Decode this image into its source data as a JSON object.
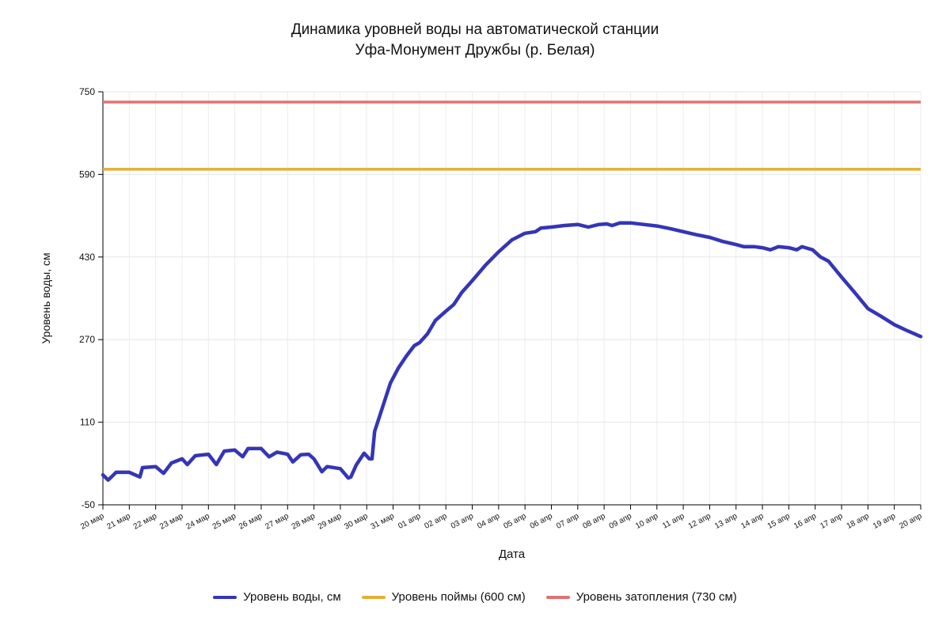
{
  "chart_data": {
    "type": "line",
    "title": [
      "Динамика уровней воды на автоматической станции",
      "Уфа-Монумент Дружбы (р. Белая)"
    ],
    "xlabel": "Дата",
    "ylabel": "Уровень воды, см",
    "ylim": [
      -50,
      750
    ],
    "yticks": [
      -50,
      110,
      270,
      430,
      590,
      750
    ],
    "xticks": [
      "20 мар",
      "21 мар",
      "22 мар",
      "23 мар",
      "24 мар",
      "25 мар",
      "26 мар",
      "27 мар",
      "28 мар",
      "29 мар",
      "30 мар",
      "31 мар",
      "01 апр",
      "02 апр",
      "03 апр",
      "04 апр",
      "05 апр",
      "06 апр",
      "07 апр",
      "08 апр",
      "09 апр",
      "10 апр",
      "11 апр",
      "12 апр",
      "13 апр",
      "14 апр",
      "15 апр",
      "16 апр",
      "17 апр",
      "18 апр",
      "19 апр",
      "20 апр"
    ],
    "grid": true,
    "legend_placement": "bottom",
    "series": [
      {
        "name": "Уровень воды, см",
        "color": "#3535b8",
        "x_days": [
          0,
          0.2,
          0.5,
          1.0,
          1.4,
          1.5,
          2.0,
          2.3,
          2.6,
          3.0,
          3.2,
          3.5,
          4.0,
          4.3,
          4.6,
          5.0,
          5.3,
          5.5,
          6.0,
          6.3,
          6.6,
          7.0,
          7.2,
          7.5,
          7.8,
          8.0,
          8.3,
          8.5,
          9.0,
          9.3,
          9.4,
          9.6,
          9.9,
          10.1,
          10.2,
          10.3,
          10.6,
          10.9,
          11.2,
          11.5,
          11.8,
          12.0,
          12.3,
          12.6,
          13.0,
          13.3,
          13.6,
          14.0,
          14.5,
          15.0,
          15.5,
          16.0,
          16.4,
          16.6,
          17.0,
          17.5,
          18.0,
          18.4,
          18.8,
          19.1,
          19.3,
          19.6,
          20.0,
          20.5,
          21.0,
          21.5,
          22.0,
          22.5,
          23.0,
          23.5,
          24.0,
          24.3,
          24.7,
          25.0,
          25.3,
          25.6,
          26.0,
          26.3,
          26.5,
          26.9,
          27.2,
          27.5,
          28.0,
          28.5,
          29.0,
          29.5,
          30.0,
          30.5,
          31.0
        ],
        "values": [
          8,
          -2,
          13,
          13,
          4,
          22,
          24,
          11,
          31,
          39,
          28,
          45,
          48,
          28,
          54,
          56,
          43,
          59,
          59,
          43,
          52,
          48,
          33,
          47,
          48,
          39,
          14,
          24,
          20,
          2,
          4,
          27,
          50,
          39,
          39,
          92,
          139,
          186,
          215,
          238,
          258,
          264,
          281,
          307,
          325,
          338,
          361,
          384,
          414,
          440,
          463,
          476,
          479,
          486,
          488,
          491,
          493,
          488,
          493,
          494,
          491,
          496,
          496,
          493,
          490,
          485,
          479,
          473,
          468,
          460,
          454,
          450,
          450,
          448,
          444,
          450,
          448,
          444,
          450,
          444,
          430,
          422,
          391,
          361,
          330,
          315,
          299,
          287,
          276
        ]
      },
      {
        "name": "Уровень поймы (600 см)",
        "color": "#e3b032",
        "constant": 600
      },
      {
        "name": "Уровень затопления (730 см)",
        "color": "#e07272",
        "constant": 730
      }
    ]
  }
}
